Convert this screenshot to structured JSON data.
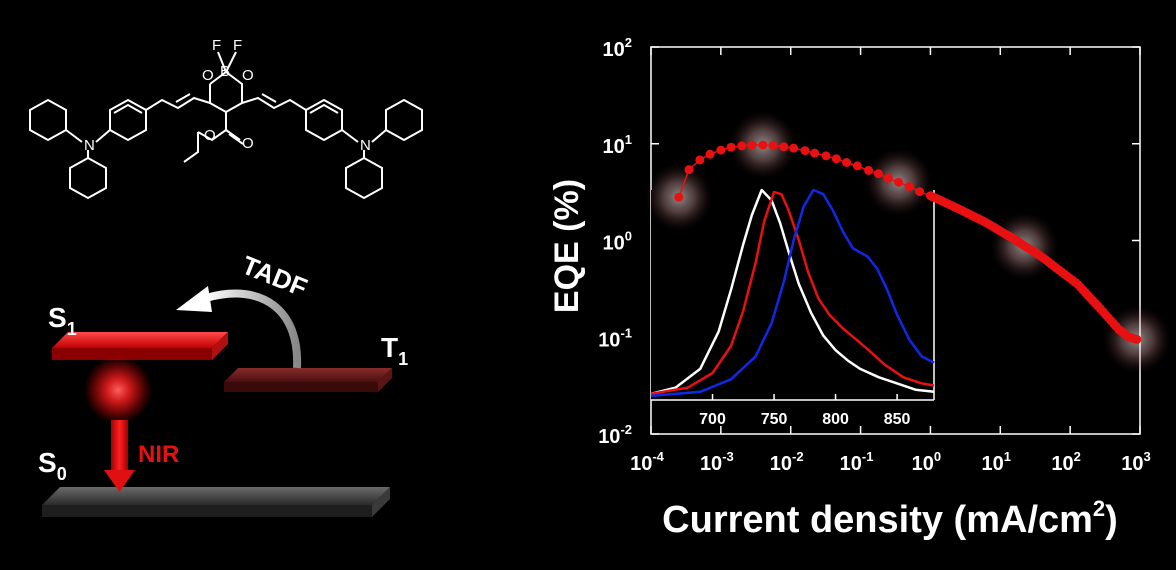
{
  "chart_data": [
    {
      "type": "scatter",
      "xlabel": "Current density (mA/cm",
      "xlabel_sup": "2",
      "xlabel_close": ")",
      "ylabel": "EQE (%)",
      "xscale": "log",
      "yscale": "log",
      "xlim": [
        0.0001,
        1000
      ],
      "ylim": [
        0.01,
        100
      ],
      "x_ticks": [
        {
          "base": "10",
          "exp": "-4",
          "value": 0.0001
        },
        {
          "base": "10",
          "exp": "-3",
          "value": 0.001
        },
        {
          "base": "10",
          "exp": "-2",
          "value": 0.01
        },
        {
          "base": "10",
          "exp": "-1",
          "value": 0.1
        },
        {
          "base": "10",
          "exp": "0",
          "value": 1
        },
        {
          "base": "10",
          "exp": "1",
          "value": 10
        },
        {
          "base": "10",
          "exp": "2",
          "value": 100
        },
        {
          "base": "10",
          "exp": "3",
          "value": 1000
        }
      ],
      "y_ticks": [
        {
          "base": "10",
          "exp": "-2",
          "value": 0.01
        },
        {
          "base": "10",
          "exp": "-1",
          "value": 0.1
        },
        {
          "base": "10",
          "exp": "0",
          "value": 1
        },
        {
          "base": "10",
          "exp": "1",
          "value": 10
        },
        {
          "base": "10",
          "exp": "2",
          "value": 100
        }
      ],
      "series": [
        {
          "color": "#e81010",
          "x": [
            0.00025,
            0.00035,
            0.0005,
            0.0007,
            0.001,
            0.0014,
            0.002,
            0.0028,
            0.004,
            0.0056,
            0.008,
            0.011,
            0.016,
            0.022,
            0.032,
            0.045,
            0.063,
            0.09,
            0.13,
            0.18,
            0.25,
            0.35,
            0.5,
            0.7,
            1.0,
            1.4,
            2,
            2.8,
            4,
            5.6,
            8,
            11,
            16,
            22,
            32,
            45,
            63,
            90,
            130,
            180,
            250,
            350,
            500,
            700,
            900
          ],
          "y": [
            2.8,
            5.4,
            6.8,
            7.8,
            8.6,
            9.2,
            9.5,
            9.7,
            9.7,
            9.6,
            9.3,
            9.0,
            8.5,
            8.0,
            7.5,
            7.0,
            6.4,
            5.9,
            5.3,
            4.9,
            4.4,
            4.0,
            3.6,
            3.2,
            2.9,
            2.6,
            2.3,
            2.05,
            1.8,
            1.6,
            1.38,
            1.2,
            1.03,
            0.88,
            0.75,
            0.63,
            0.52,
            0.43,
            0.35,
            0.27,
            0.21,
            0.16,
            0.12,
            0.1,
            0.095
          ],
          "highlight_x": [
            0.00025,
            0.004,
            0.35,
            22,
            900
          ]
        }
      ]
    },
    {
      "type": "line",
      "xlabel": "",
      "ylabel": "",
      "xlim": [
        650,
        880
      ],
      "ylim": [
        0,
        1
      ],
      "x_ticks": [
        "700",
        "750",
        "800",
        "850"
      ],
      "x_tick_values": [
        700,
        750,
        800,
        850
      ],
      "series": [
        {
          "color": "#ffffff",
          "x": [
            650,
            670,
            690,
            705,
            715,
            725,
            732,
            740,
            748,
            755,
            762,
            770,
            780,
            790,
            800,
            810,
            820,
            835,
            850,
            865,
            880
          ],
          "y": [
            0.02,
            0.05,
            0.14,
            0.32,
            0.52,
            0.74,
            0.88,
            1.0,
            0.95,
            0.84,
            0.7,
            0.55,
            0.41,
            0.3,
            0.23,
            0.18,
            0.14,
            0.1,
            0.07,
            0.04,
            0.03
          ]
        },
        {
          "color": "#e81010",
          "x": [
            650,
            680,
            700,
            715,
            725,
            735,
            742,
            750,
            756,
            762,
            770,
            778,
            786,
            795,
            805,
            815,
            825,
            840,
            855,
            870,
            880
          ],
          "y": [
            0.02,
            0.05,
            0.12,
            0.25,
            0.42,
            0.65,
            0.85,
            0.99,
            0.98,
            0.9,
            0.76,
            0.6,
            0.48,
            0.4,
            0.34,
            0.29,
            0.24,
            0.16,
            0.1,
            0.07,
            0.06
          ]
        },
        {
          "color": "#1028e8",
          "x": [
            650,
            690,
            715,
            735,
            748,
            758,
            766,
            774,
            782,
            790,
            798,
            806,
            814,
            820,
            826,
            834,
            842,
            850,
            860,
            870,
            880
          ],
          "y": [
            0.01,
            0.03,
            0.09,
            0.2,
            0.36,
            0.56,
            0.76,
            0.92,
            1.0,
            0.98,
            0.9,
            0.8,
            0.72,
            0.7,
            0.68,
            0.62,
            0.52,
            0.4,
            0.28,
            0.2,
            0.17
          ]
        }
      ]
    }
  ],
  "diagram": {
    "s1_label": "S",
    "s1_sub": "1",
    "t1_label": "T",
    "t1_sub": "1",
    "s0_label": "S",
    "s0_sub": "0",
    "tadf_label": "TADF",
    "nir_label": "NIR",
    "molecule_atoms": [
      "F",
      "F",
      "B",
      "O",
      "O",
      "O",
      "O",
      "N",
      "N"
    ]
  }
}
